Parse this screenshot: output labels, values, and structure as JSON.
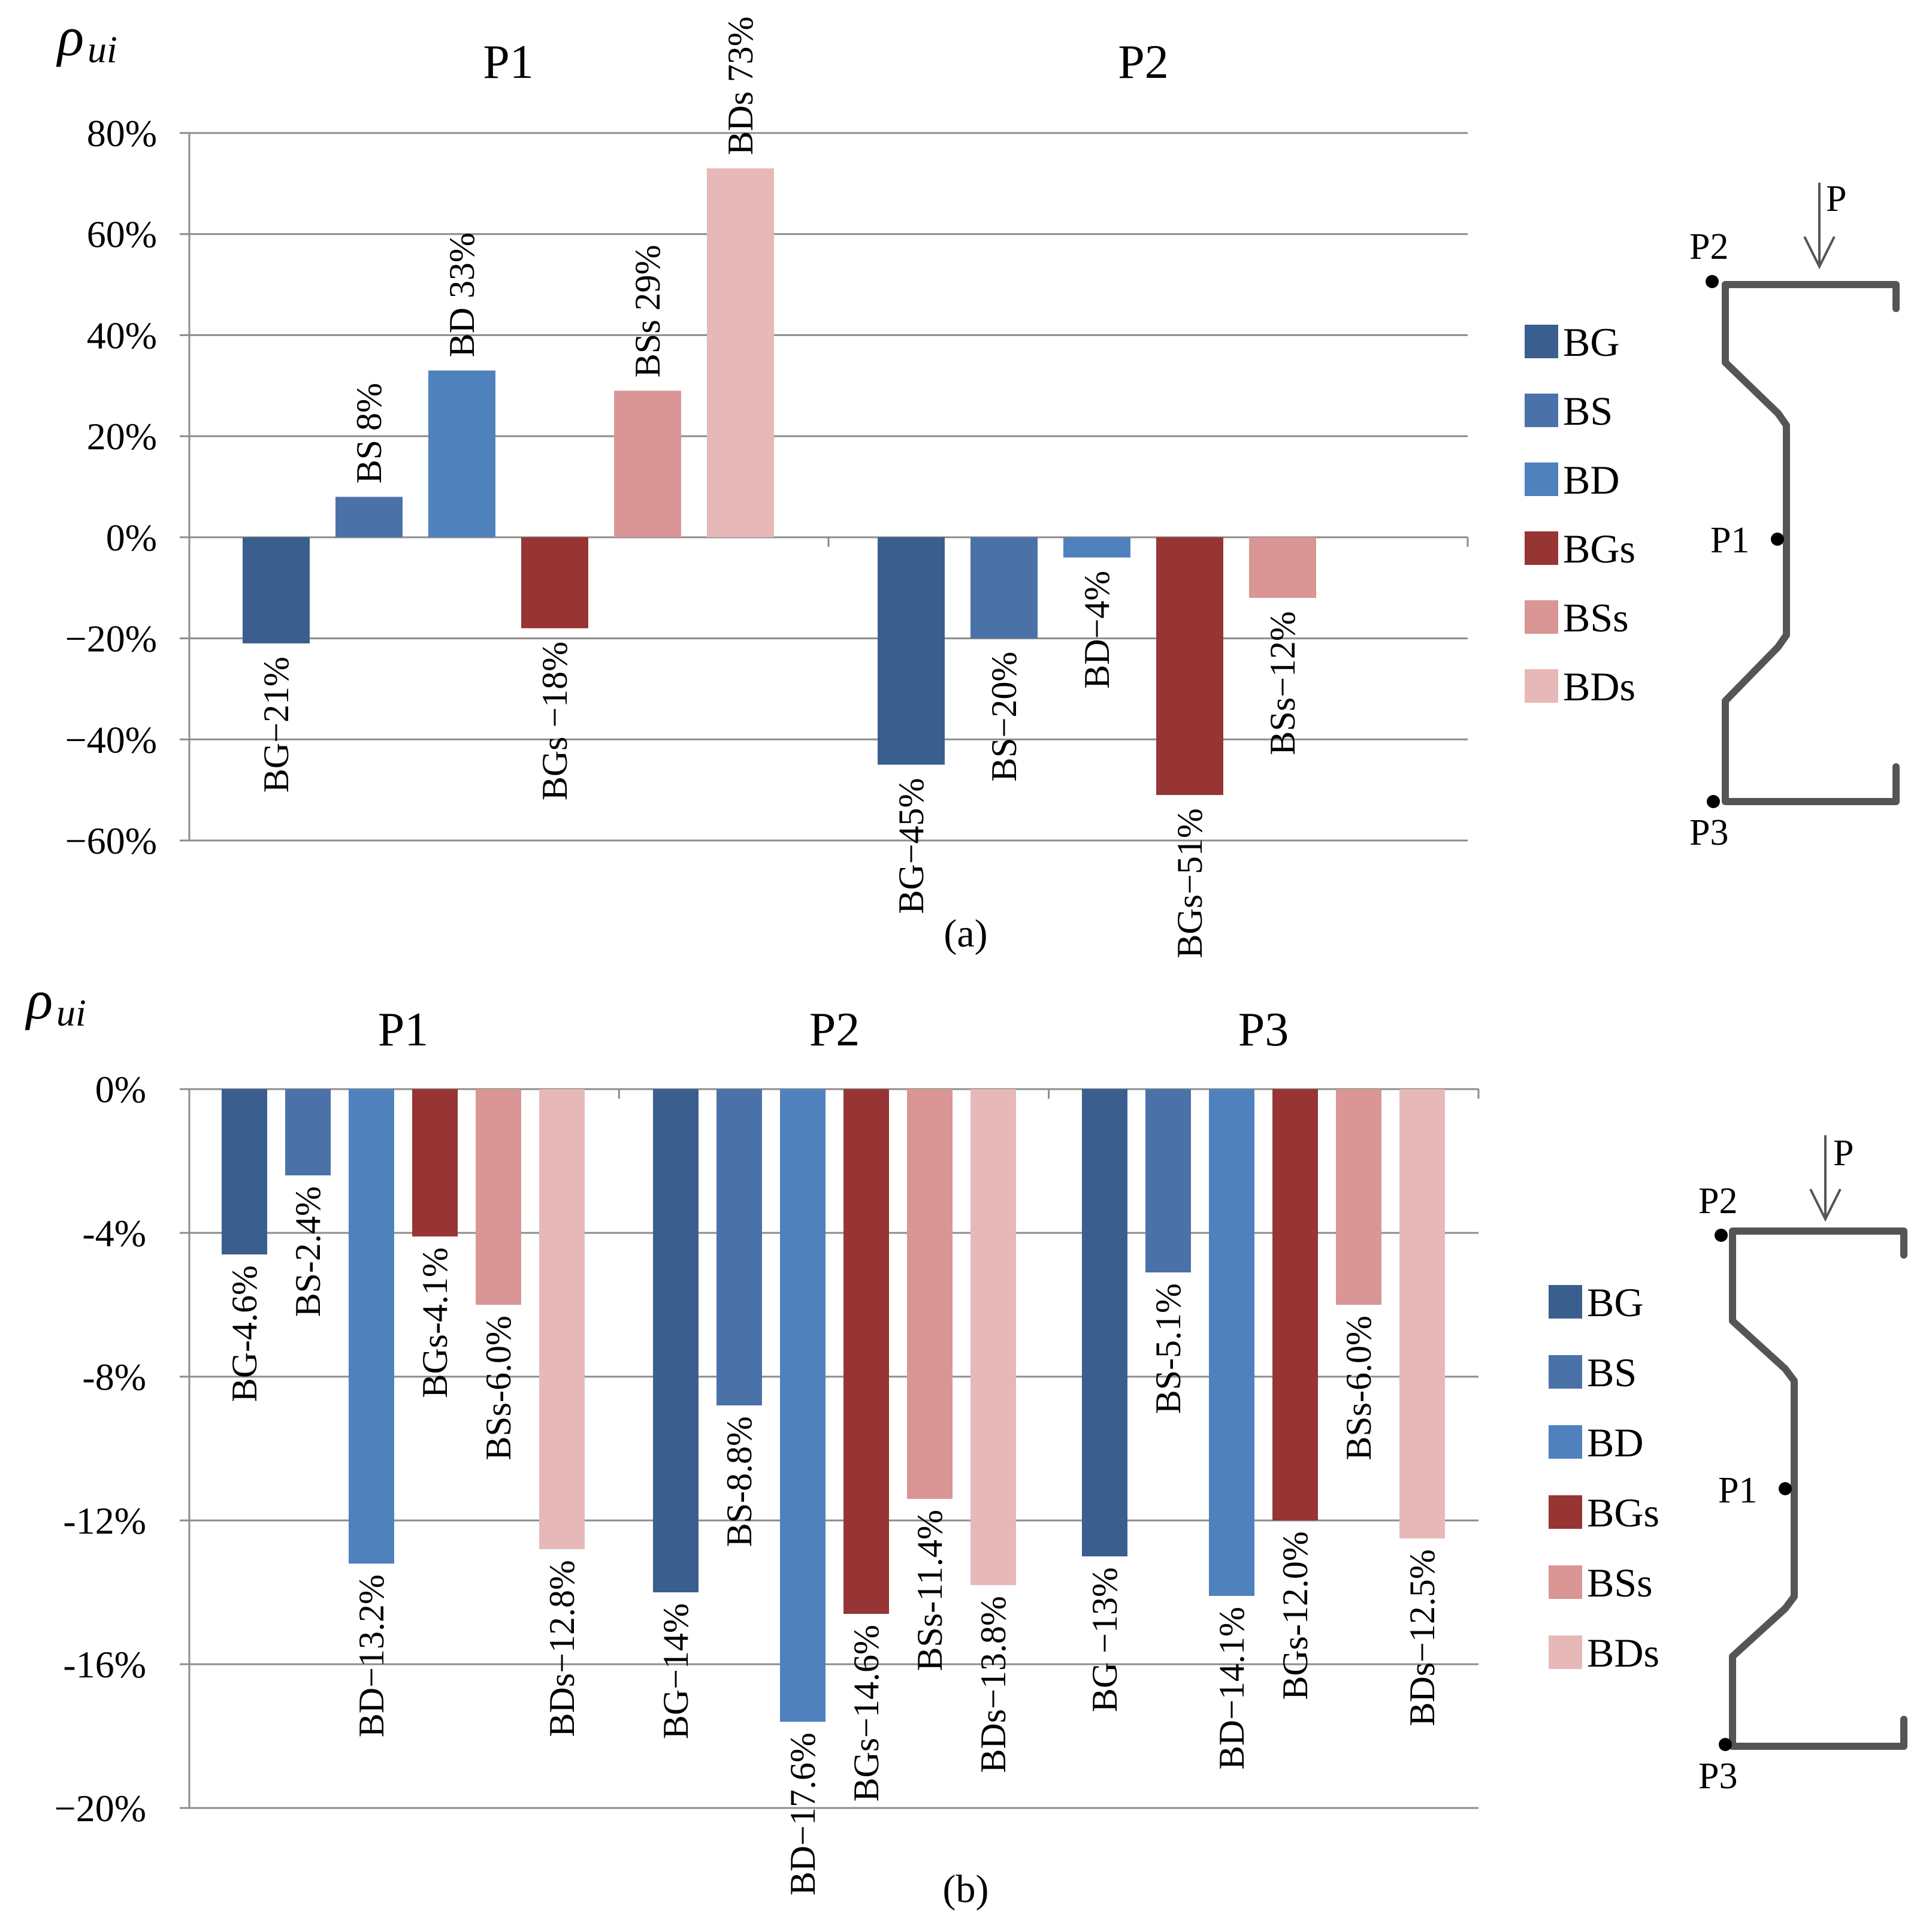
{
  "series_names": [
    "BG",
    "BS",
    "BD",
    "BGs",
    "BSs",
    "BDs"
  ],
  "colors": [
    "#3a5f8f",
    "#4b72a8",
    "#4f81bd",
    "#963534",
    "#d99694",
    "#e6b9b8"
  ],
  "chart_data": [
    {
      "type": "bar",
      "panel_caption": "(a)",
      "ylabel": "ρ",
      "ylabel_sub": "ui",
      "ylim": [
        -60,
        80
      ],
      "yticks": [
        80,
        60,
        40,
        20,
        0,
        -20,
        -40,
        -60
      ],
      "ytick_labels": [
        "80%",
        "60%",
        "40%",
        "20%",
        "0%",
        "−20%",
        "−40%",
        "−60%"
      ],
      "grid": true,
      "legend": "right",
      "categories": [
        "P1",
        "P2"
      ],
      "series": [
        {
          "name": "BG",
          "values": [
            -21,
            -45
          ]
        },
        {
          "name": "BS",
          "values": [
            8,
            -20
          ]
        },
        {
          "name": "BD",
          "values": [
            33,
            -4
          ]
        },
        {
          "name": "BGs",
          "values": [
            -18,
            -51
          ]
        },
        {
          "name": "BSs",
          "values": [
            29,
            -12
          ]
        },
        {
          "name": "BDs",
          "values": [
            73,
            null
          ]
        }
      ],
      "data_labels": [
        [
          "BG−21%",
          "BS 8%",
          "BD 33%",
          "BGs −18%",
          "BSs 29%",
          "BDs 73%"
        ],
        [
          "BG−45%",
          "BS−20%",
          "BD−4%",
          "BGs−51%",
          "BSs−12%",
          ""
        ]
      ]
    },
    {
      "type": "bar",
      "panel_caption": "(b)",
      "ylabel": "ρ",
      "ylabel_sub": "ui",
      "ylim": [
        -20,
        0
      ],
      "yticks": [
        0,
        -4,
        -8,
        -12,
        -16,
        -20
      ],
      "ytick_labels": [
        "0%",
        "-4%",
        "-8%",
        "-12%",
        "-16%",
        "−20%"
      ],
      "grid": true,
      "legend": "right",
      "categories": [
        "P1",
        "P2",
        "P3"
      ],
      "series": [
        {
          "name": "BG",
          "values": [
            -4.6,
            -14,
            -13
          ]
        },
        {
          "name": "BS",
          "values": [
            -2.4,
            -8.8,
            -5.1
          ]
        },
        {
          "name": "BD",
          "values": [
            -13.2,
            -17.6,
            -14.1
          ]
        },
        {
          "name": "BGs",
          "values": [
            -4.1,
            -14.6,
            -12.0
          ]
        },
        {
          "name": "BSs",
          "values": [
            -6.0,
            -11.4,
            -6.0
          ]
        },
        {
          "name": "BDs",
          "values": [
            -12.8,
            -13.8,
            -12.5
          ]
        }
      ],
      "data_labels": [
        [
          "BG-4.6%",
          "BS-2.4%",
          "BD−13.2%",
          "BGs-4.1%",
          "BSs-6.0%",
          "BDs−12.8%"
        ],
        [
          "BG−14%",
          "BS-8.8%",
          "BD−17.6%",
          "BGs−14.6%",
          "BSs-11.4%",
          "BDs−13.8%"
        ],
        [
          "BG −13%",
          "BS-5.1%",
          "BD−14.1%",
          "BGs-12.0%",
          "BSs-6.0%",
          "BDs−12.5%"
        ]
      ]
    }
  ],
  "diagram": {
    "load_label": "P",
    "point_labels": [
      "P2",
      "P1",
      "P3"
    ]
  }
}
